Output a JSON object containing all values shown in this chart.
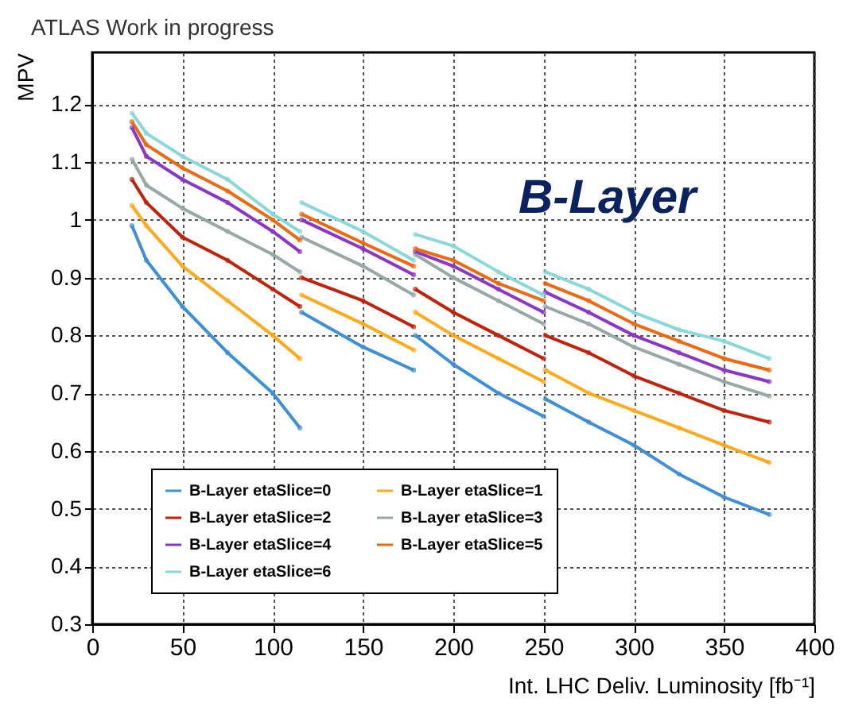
{
  "chart_data": {
    "type": "line",
    "title": "ATLAS Work in progress",
    "xlabel": "Int. LHC Deliv. Luminosity [fb⁻¹]",
    "ylabel": "MPV",
    "annotations": [
      "B-Layer"
    ],
    "x": [
      22,
      30,
      50,
      75,
      100,
      115,
      115.5,
      116,
      150,
      178,
      178.5,
      179,
      200,
      225,
      250,
      250.5,
      251,
      275,
      300,
      325,
      350,
      375
    ],
    "xlim": [
      0,
      400
    ],
    "xticks": [
      0,
      50,
      100,
      150,
      200,
      250,
      300,
      350,
      400
    ],
    "ylim": [
      0.3,
      1.29
    ],
    "yticks": [
      0.3,
      0.4,
      0.5,
      0.6,
      0.7,
      0.8,
      0.9,
      1,
      1.1,
      1.2
    ],
    "grid": true,
    "legend": "bottom left",
    "marker": "circle",
    "line_style": "solid",
    "series": [
      {
        "name": "B-Layer etaSlice=0",
        "color": "#3d8fd9",
        "values": [
          0.99,
          0.93,
          0.85,
          0.77,
          0.7,
          0.64,
          null,
          0.84,
          0.78,
          0.74,
          null,
          0.8,
          0.75,
          0.7,
          0.66,
          null,
          0.69,
          0.65,
          0.61,
          0.56,
          0.52,
          0.49
        ]
      },
      {
        "name": "B-Layer etaSlice=1",
        "color": "#ffaa1a",
        "values": [
          1.025,
          0.99,
          0.92,
          0.86,
          0.8,
          0.76,
          null,
          0.87,
          0.82,
          0.775,
          null,
          0.84,
          0.8,
          0.76,
          0.72,
          null,
          0.74,
          0.7,
          0.67,
          0.64,
          0.61,
          0.58
        ]
      },
      {
        "name": "B-Layer etaSlice=2",
        "color": "#c0220a",
        "values": [
          1.07,
          1.03,
          0.97,
          0.93,
          0.88,
          0.85,
          null,
          0.9,
          0.86,
          0.815,
          null,
          0.88,
          0.84,
          0.8,
          0.76,
          null,
          0.8,
          0.77,
          0.73,
          0.7,
          0.67,
          0.65
        ]
      },
      {
        "name": "B-Layer etaSlice=3",
        "color": "#97a8a6",
        "values": [
          1.105,
          1.06,
          1.02,
          0.98,
          0.94,
          0.91,
          null,
          0.97,
          0.92,
          0.87,
          null,
          0.94,
          0.9,
          0.86,
          0.82,
          null,
          0.85,
          0.82,
          0.78,
          0.75,
          0.72,
          0.695
        ]
      },
      {
        "name": "B-Layer etaSlice=4",
        "color": "#8a36c8",
        "values": [
          1.16,
          1.11,
          1.07,
          1.03,
          0.98,
          0.945,
          null,
          1.0,
          0.95,
          0.905,
          null,
          0.945,
          0.92,
          0.88,
          0.84,
          null,
          0.875,
          0.84,
          0.8,
          0.77,
          0.74,
          0.72
        ]
      },
      {
        "name": "B-Layer etaSlice=5",
        "color": "#ee6a10",
        "values": [
          1.17,
          1.13,
          1.09,
          1.05,
          1.0,
          0.965,
          null,
          1.01,
          0.96,
          0.92,
          null,
          0.95,
          0.93,
          0.89,
          0.86,
          null,
          0.89,
          0.86,
          0.82,
          0.79,
          0.76,
          0.74
        ]
      },
      {
        "name": "B-Layer etaSlice=6",
        "color": "#88d8dc",
        "values": [
          1.185,
          1.15,
          1.11,
          1.07,
          1.01,
          0.98,
          null,
          1.03,
          0.98,
          0.93,
          null,
          0.975,
          0.955,
          0.91,
          0.87,
          null,
          0.91,
          0.88,
          0.84,
          0.81,
          0.79,
          0.76
        ]
      }
    ]
  }
}
